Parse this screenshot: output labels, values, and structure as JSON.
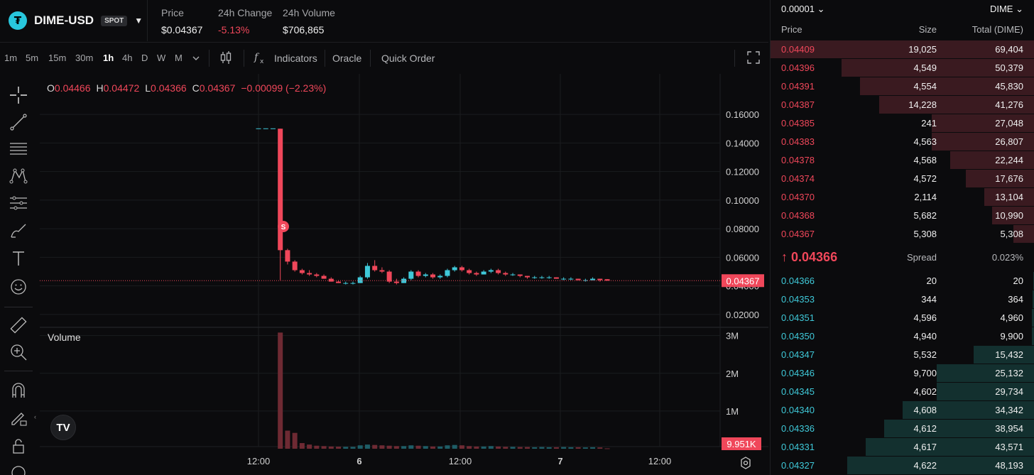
{
  "header": {
    "pair": "DIME-USD",
    "badge": "SPOT",
    "price_label": "Price",
    "price": "$0.04367",
    "change_label": "24h Change",
    "change": "-5.13%",
    "volume_label": "24h Volume",
    "volume": "$706,865"
  },
  "toolbar": {
    "timeframes": [
      "1m",
      "5m",
      "15m",
      "30m",
      "1h",
      "4h",
      "D",
      "W",
      "M"
    ],
    "active_timeframe": "1h",
    "indicators": "Indicators",
    "oracle": "Oracle",
    "quick_order": "Quick Order"
  },
  "ohlc": {
    "o_key": "O",
    "o": "0.04466",
    "h_key": "H",
    "h": "0.04472",
    "l_key": "L",
    "l": "0.04366",
    "c_key": "C",
    "c": "0.04367",
    "change": "−0.00099 (−2.23%)"
  },
  "chart": {
    "volume_label": "Volume",
    "price_ticks": [
      "0.16000",
      "0.14000",
      "0.12000",
      "0.10000",
      "0.08000",
      "0.06000",
      "0.04000",
      "0.02000"
    ],
    "volume_ticks": [
      "3M",
      "2M",
      "1M"
    ],
    "time_ticks": [
      "12:00",
      "6",
      "12:00",
      "7",
      "12:00"
    ],
    "last_price_label": "0.04367",
    "last_volume_label": "9.951K",
    "marker": "S",
    "colors": {
      "up": "#3fc9d9",
      "down": "#f0475a",
      "grid": "#1b1c1f",
      "bg": "#0b0b0d"
    }
  },
  "chart_data": {
    "type": "candlestick",
    "interval": "1h",
    "price_ylim": [
      0.02,
      0.16
    ],
    "candles": [
      {
        "o": 0.15,
        "h": 0.15,
        "l": 0.15,
        "c": 0.15
      },
      {
        "o": 0.15,
        "h": 0.15,
        "l": 0.15,
        "c": 0.15
      },
      {
        "o": 0.15,
        "h": 0.15,
        "l": 0.15,
        "c": 0.15
      },
      {
        "o": 0.15,
        "h": 0.15,
        "l": 0.044,
        "c": 0.065
      },
      {
        "o": 0.065,
        "h": 0.066,
        "l": 0.055,
        "c": 0.057
      },
      {
        "o": 0.057,
        "h": 0.058,
        "l": 0.05,
        "c": 0.051
      },
      {
        "o": 0.051,
        "h": 0.052,
        "l": 0.048,
        "c": 0.049
      },
      {
        "o": 0.049,
        "h": 0.051,
        "l": 0.047,
        "c": 0.048
      },
      {
        "o": 0.048,
        "h": 0.049,
        "l": 0.046,
        "c": 0.047
      },
      {
        "o": 0.047,
        "h": 0.048,
        "l": 0.045,
        "c": 0.045
      },
      {
        "o": 0.045,
        "h": 0.046,
        "l": 0.043,
        "c": 0.043
      },
      {
        "o": 0.043,
        "h": 0.044,
        "l": 0.042,
        "c": 0.042
      },
      {
        "o": 0.042,
        "h": 0.043,
        "l": 0.041,
        "c": 0.042
      },
      {
        "o": 0.042,
        "h": 0.043,
        "l": 0.041,
        "c": 0.042
      },
      {
        "o": 0.042,
        "h": 0.047,
        "l": 0.042,
        "c": 0.046
      },
      {
        "o": 0.046,
        "h": 0.056,
        "l": 0.045,
        "c": 0.054
      },
      {
        "o": 0.054,
        "h": 0.058,
        "l": 0.05,
        "c": 0.051
      },
      {
        "o": 0.051,
        "h": 0.053,
        "l": 0.049,
        "c": 0.05
      },
      {
        "o": 0.05,
        "h": 0.051,
        "l": 0.042,
        "c": 0.043
      },
      {
        "o": 0.043,
        "h": 0.045,
        "l": 0.041,
        "c": 0.042
      },
      {
        "o": 0.042,
        "h": 0.046,
        "l": 0.042,
        "c": 0.045
      },
      {
        "o": 0.045,
        "h": 0.051,
        "l": 0.044,
        "c": 0.05
      },
      {
        "o": 0.05,
        "h": 0.051,
        "l": 0.046,
        "c": 0.047
      },
      {
        "o": 0.047,
        "h": 0.049,
        "l": 0.046,
        "c": 0.048
      },
      {
        "o": 0.048,
        "h": 0.049,
        "l": 0.045,
        "c": 0.046
      },
      {
        "o": 0.046,
        "h": 0.048,
        "l": 0.045,
        "c": 0.047
      },
      {
        "o": 0.047,
        "h": 0.052,
        "l": 0.046,
        "c": 0.051
      },
      {
        "o": 0.051,
        "h": 0.054,
        "l": 0.05,
        "c": 0.053
      },
      {
        "o": 0.053,
        "h": 0.054,
        "l": 0.05,
        "c": 0.051
      },
      {
        "o": 0.051,
        "h": 0.052,
        "l": 0.048,
        "c": 0.049
      },
      {
        "o": 0.049,
        "h": 0.05,
        "l": 0.047,
        "c": 0.048
      },
      {
        "o": 0.048,
        "h": 0.051,
        "l": 0.048,
        "c": 0.05
      },
      {
        "o": 0.05,
        "h": 0.052,
        "l": 0.049,
        "c": 0.051
      },
      {
        "o": 0.051,
        "h": 0.052,
        "l": 0.048,
        "c": 0.049
      },
      {
        "o": 0.049,
        "h": 0.05,
        "l": 0.047,
        "c": 0.048
      },
      {
        "o": 0.048,
        "h": 0.049,
        "l": 0.047,
        "c": 0.048
      },
      {
        "o": 0.048,
        "h": 0.048,
        "l": 0.046,
        "c": 0.047
      },
      {
        "o": 0.047,
        "h": 0.047,
        "l": 0.045,
        "c": 0.046
      },
      {
        "o": 0.046,
        "h": 0.047,
        "l": 0.045,
        "c": 0.046
      },
      {
        "o": 0.046,
        "h": 0.047,
        "l": 0.045,
        "c": 0.046
      },
      {
        "o": 0.046,
        "h": 0.047,
        "l": 0.045,
        "c": 0.046
      },
      {
        "o": 0.046,
        "h": 0.046,
        "l": 0.045,
        "c": 0.045
      },
      {
        "o": 0.045,
        "h": 0.046,
        "l": 0.044,
        "c": 0.045
      },
      {
        "o": 0.045,
        "h": 0.046,
        "l": 0.044,
        "c": 0.045
      },
      {
        "o": 0.045,
        "h": 0.045,
        "l": 0.044,
        "c": 0.044
      },
      {
        "o": 0.044,
        "h": 0.045,
        "l": 0.043,
        "c": 0.044
      },
      {
        "o": 0.044,
        "h": 0.046,
        "l": 0.044,
        "c": 0.045
      },
      {
        "o": 0.045,
        "h": 0.045,
        "l": 0.043,
        "c": 0.044
      },
      {
        "o": 0.04466,
        "h": 0.04472,
        "l": 0.04366,
        "c": 0.04367
      }
    ],
    "volume_ylim": [
      0,
      3200000
    ],
    "volumes": [
      0,
      0,
      0,
      3080000,
      480000,
      420000,
      150000,
      110000,
      80000,
      70000,
      60000,
      55000,
      50000,
      50000,
      90000,
      110000,
      100000,
      90000,
      80000,
      70000,
      70000,
      90000,
      80000,
      70000,
      60000,
      60000,
      90000,
      100000,
      90000,
      70000,
      60000,
      60000,
      70000,
      60000,
      50000,
      50000,
      45000,
      45000,
      40000,
      45000,
      40000,
      40000,
      45000,
      40000,
      40000,
      35000,
      40000,
      35000,
      9951
    ]
  },
  "orderbook": {
    "tick_size": "0.00001",
    "unit": "DIME",
    "headers": {
      "price": "Price",
      "size": "Size",
      "total": "Total (DIME)"
    },
    "asks": [
      {
        "price": "0.04409",
        "size": "19,025",
        "total": "69,404",
        "depth": 1.0
      },
      {
        "price": "0.04396",
        "size": "4,549",
        "total": "50,379",
        "depth": 0.73
      },
      {
        "price": "0.04391",
        "size": "4,554",
        "total": "45,830",
        "depth": 0.66
      },
      {
        "price": "0.04387",
        "size": "14,228",
        "total": "41,276",
        "depth": 0.59
      },
      {
        "price": "0.04385",
        "size": "241",
        "total": "27,048",
        "depth": 0.39
      },
      {
        "price": "0.04383",
        "size": "4,563",
        "total": "26,807",
        "depth": 0.39
      },
      {
        "price": "0.04378",
        "size": "4,568",
        "total": "22,244",
        "depth": 0.32
      },
      {
        "price": "0.04374",
        "size": "4,572",
        "total": "17,676",
        "depth": 0.26
      },
      {
        "price": "0.04370",
        "size": "2,114",
        "total": "13,104",
        "depth": 0.19
      },
      {
        "price": "0.04368",
        "size": "5,682",
        "total": "10,990",
        "depth": 0.16
      },
      {
        "price": "0.04367",
        "size": "5,308",
        "total": "5,308",
        "depth": 0.08
      }
    ],
    "spread": {
      "arrow": "↑",
      "price": "0.04366",
      "label": "Spread",
      "value": "0.023%"
    },
    "bids": [
      {
        "price": "0.04366",
        "size": "20",
        "total": "20",
        "depth": 0.005
      },
      {
        "price": "0.04353",
        "size": "344",
        "total": "364",
        "depth": 0.008
      },
      {
        "price": "0.04351",
        "size": "4,596",
        "total": "4,960",
        "depth": 0.01
      },
      {
        "price": "0.04350",
        "size": "4,940",
        "total": "9,900",
        "depth": 0.01
      },
      {
        "price": "0.04347",
        "size": "5,532",
        "total": "15,432",
        "depth": 0.23
      },
      {
        "price": "0.04346",
        "size": "9,700",
        "total": "25,132",
        "depth": 0.37
      },
      {
        "price": "0.04345",
        "size": "4,602",
        "total": "29,734",
        "depth": 0.37
      },
      {
        "price": "0.04340",
        "size": "4,608",
        "total": "34,342",
        "depth": 0.5
      },
      {
        "price": "0.04336",
        "size": "4,612",
        "total": "38,954",
        "depth": 0.57
      },
      {
        "price": "0.04331",
        "size": "4,617",
        "total": "43,571",
        "depth": 0.64
      },
      {
        "price": "0.04327",
        "size": "4,622",
        "total": "48,193",
        "depth": 0.71
      }
    ]
  }
}
